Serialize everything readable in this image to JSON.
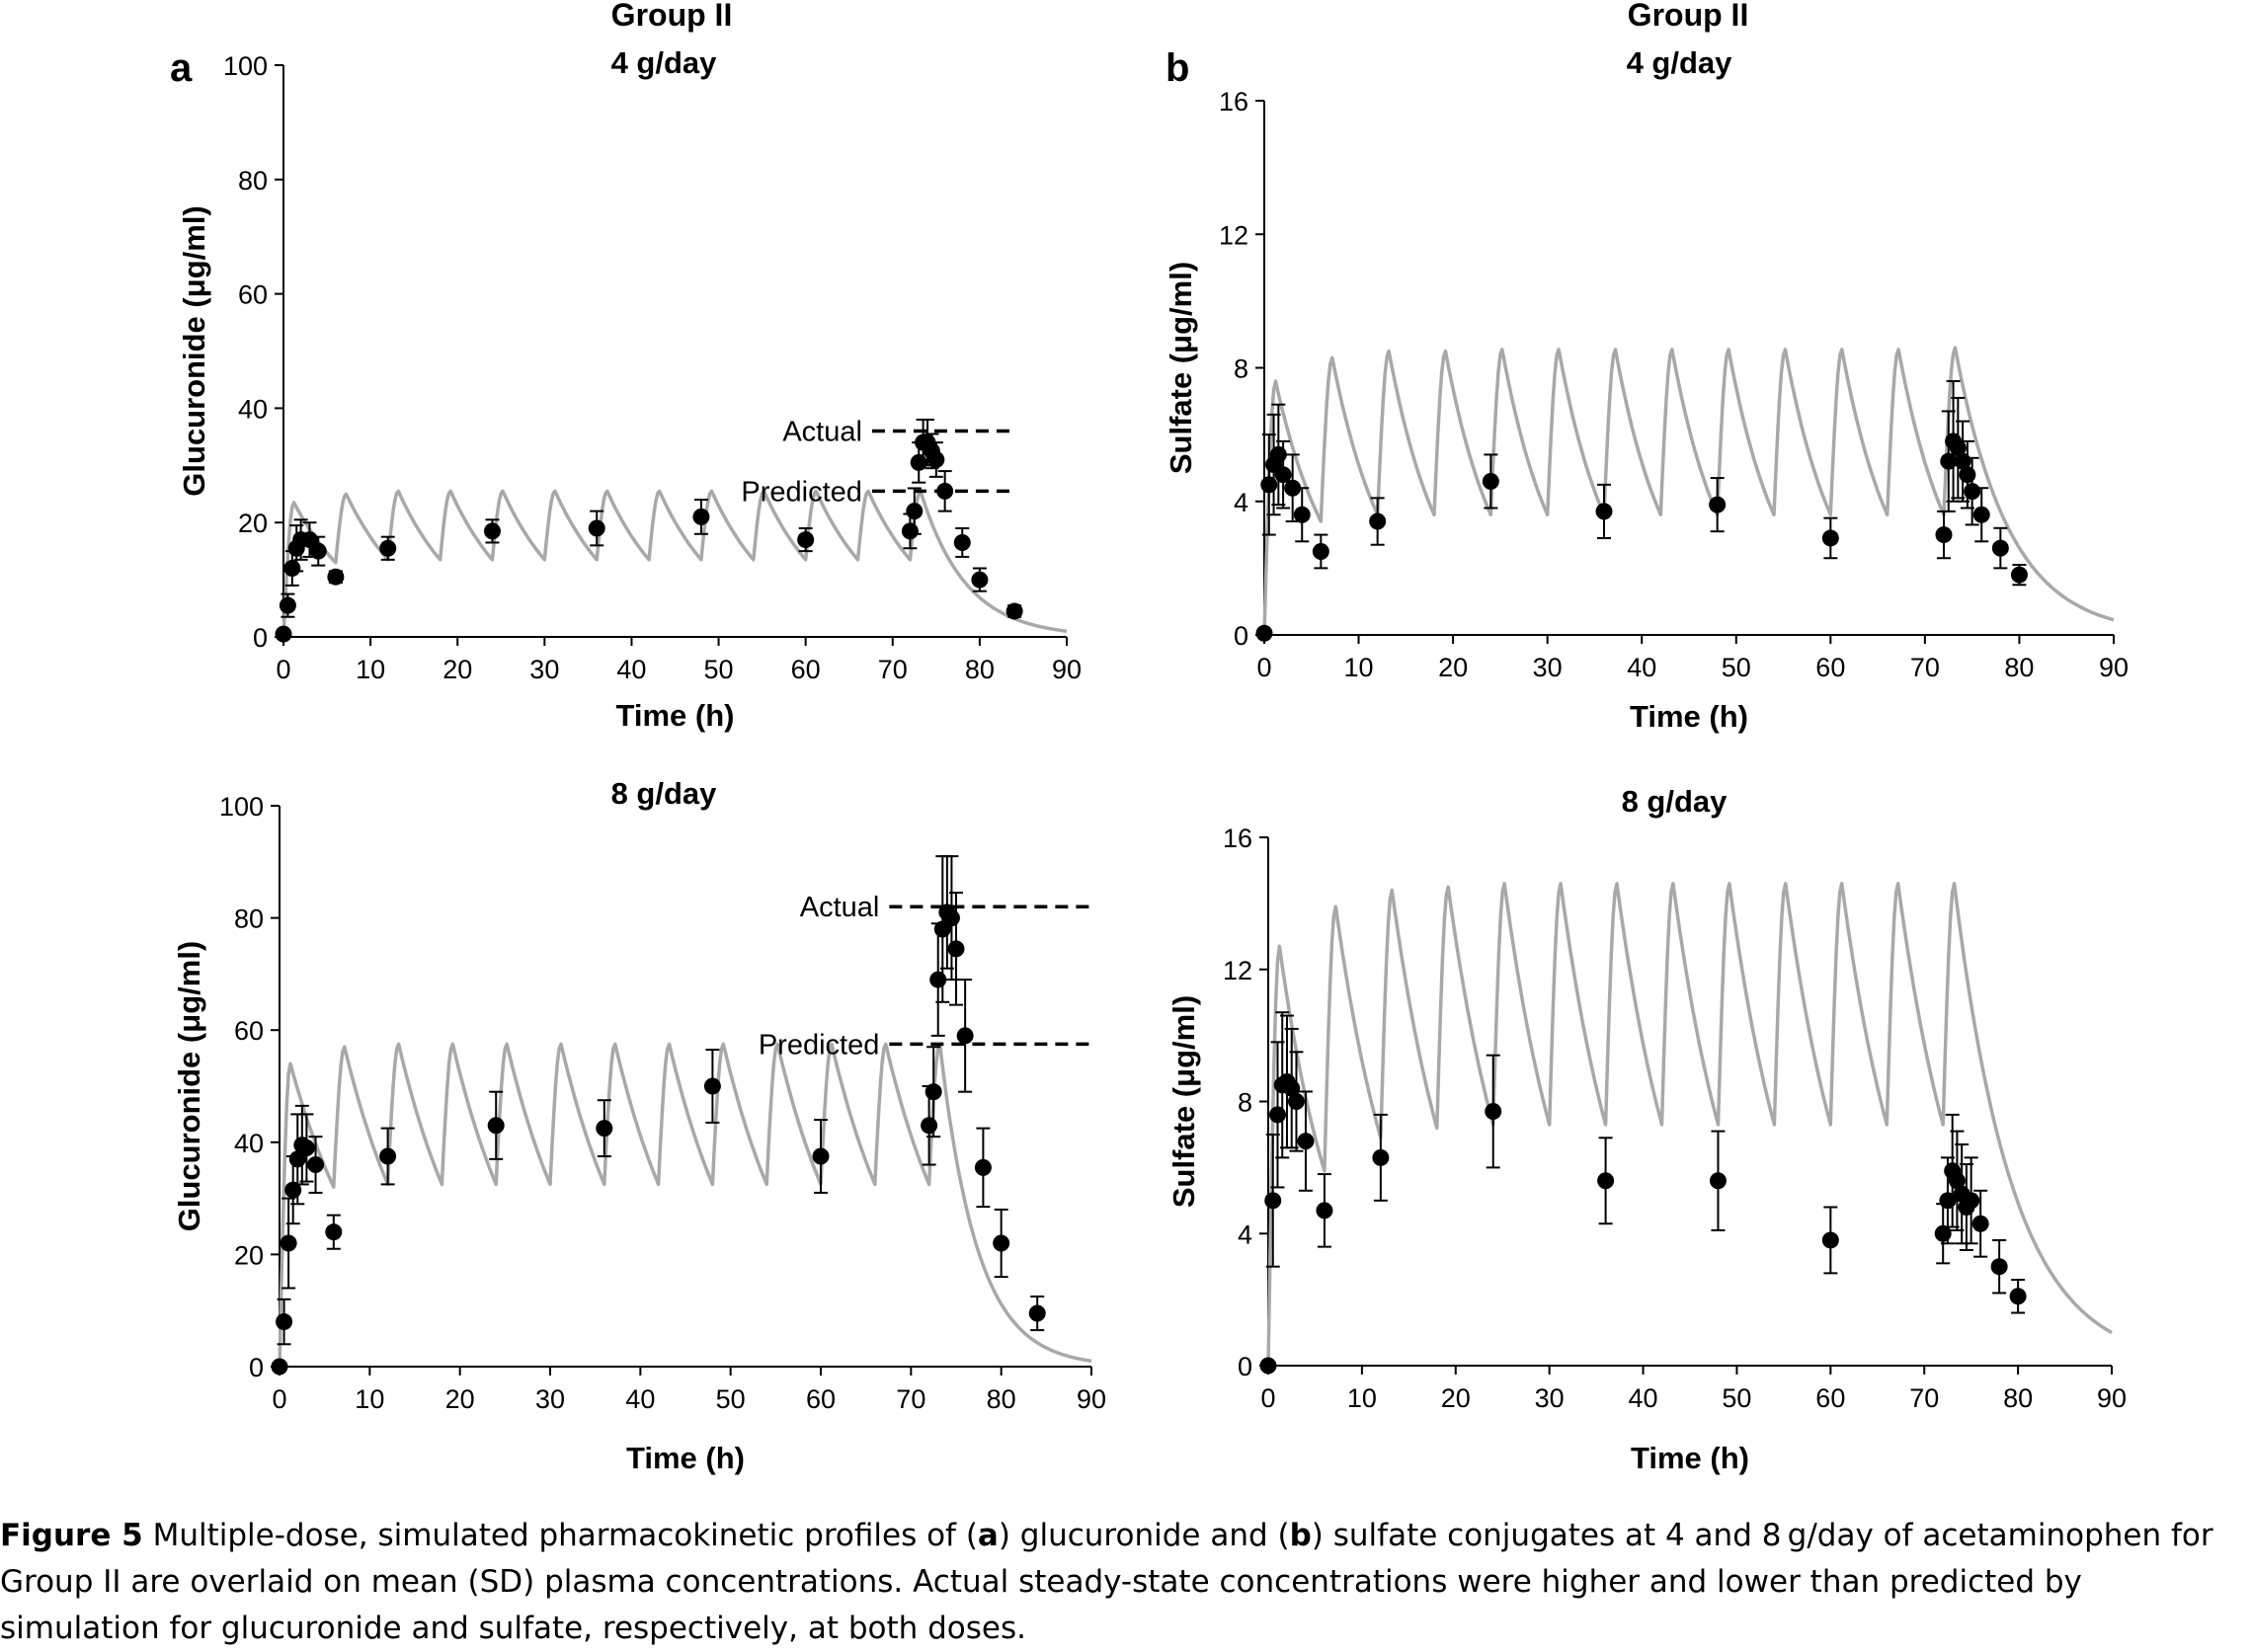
{
  "caption": {
    "label": "Figure 5",
    "text_1": "Multiple-dose, simulated pharmacokinetic profiles of (",
    "a": "a",
    "text_2": ") glucuronide and (",
    "b": "b",
    "text_3": ") sulfate conjugates at 4 and 8 g/day of acetaminophen for Group II are overlaid on mean (SD) plasma concentrations. Actual steady-state concentrations were higher and lower than predicted by simulation for glucuronide and sulfate, respectively, at both doses."
  },
  "colors": {
    "simulation": "#a8a8a8",
    "observed": "#000000",
    "axis": "#000000"
  },
  "chart_data": [
    {
      "type": "line",
      "panel": "a",
      "group_title": "Group II",
      "title": "4 g/day",
      "xlabel": "Time (h)",
      "ylabel": "Glucuronide (μg/ml)",
      "xlim": [
        0,
        90
      ],
      "ylim": [
        0,
        100
      ],
      "xticks": [
        0,
        10,
        20,
        30,
        40,
        50,
        60,
        70,
        80,
        90
      ],
      "yticks": [
        0,
        20,
        40,
        60,
        80,
        100
      ],
      "grid": false,
      "series": [
        {
          "kind": "simulated",
          "dosing_interval_h": 6,
          "doses": 13,
          "peaks": [
            23.5,
            25,
            25.5,
            25.5,
            25.5,
            25.5,
            25.5,
            25.5,
            25.5,
            25.5,
            25.5,
            25.5,
            25.5
          ],
          "troughs": [
            0,
            13,
            13.5,
            13.5,
            13.5,
            13.5,
            13.5,
            13.5,
            13.5,
            13.5,
            13.5,
            13.5,
            13.5
          ],
          "end": [
            90,
            1
          ]
        },
        {
          "kind": "observed",
          "points": [
            {
              "x": 0,
              "y": 0.5,
              "sd": 0
            },
            {
              "x": 0.5,
              "y": 5.5,
              "sd": 2
            },
            {
              "x": 1,
              "y": 12,
              "sd": 3
            },
            {
              "x": 1.5,
              "y": 15.5,
              "sd": 4
            },
            {
              "x": 2,
              "y": 17,
              "sd": 3.5
            },
            {
              "x": 3,
              "y": 17,
              "sd": 3
            },
            {
              "x": 4,
              "y": 15,
              "sd": 2.5
            },
            {
              "x": 6,
              "y": 10.5,
              "sd": 1
            },
            {
              "x": 12,
              "y": 15.5,
              "sd": 2
            },
            {
              "x": 24,
              "y": 18.5,
              "sd": 2
            },
            {
              "x": 36,
              "y": 19,
              "sd": 3
            },
            {
              "x": 48,
              "y": 21,
              "sd": 3
            },
            {
              "x": 60,
              "y": 17,
              "sd": 2
            },
            {
              "x": 72,
              "y": 18.5,
              "sd": 3
            },
            {
              "x": 72.5,
              "y": 22,
              "sd": 4
            },
            {
              "x": 73,
              "y": 30.5,
              "sd": 3.5
            },
            {
              "x": 73.5,
              "y": 34,
              "sd": 4
            },
            {
              "x": 74,
              "y": 34,
              "sd": 4
            },
            {
              "x": 74.5,
              "y": 32.5,
              "sd": 3
            },
            {
              "x": 75,
              "y": 31,
              "sd": 3
            },
            {
              "x": 76,
              "y": 25.5,
              "sd": 3.5
            },
            {
              "x": 78,
              "y": 16.5,
              "sd": 2.5
            },
            {
              "x": 80,
              "y": 10,
              "sd": 2
            },
            {
              "x": 84,
              "y": 4.5,
              "sd": 1
            }
          ]
        }
      ],
      "annotations": [
        {
          "label": "Actual",
          "y": 36,
          "x_from": 66.5,
          "x_to": 83.5
        },
        {
          "label": "Predicted",
          "y": 25.5,
          "x_from": 66.5,
          "x_to": 83.5
        }
      ]
    },
    {
      "type": "line",
      "panel": "b",
      "group_title": "Group II",
      "title": "4 g/day",
      "xlabel": "Time (h)",
      "ylabel": "Sulfate (μg/ml)",
      "xlim": [
        0,
        90
      ],
      "ylim": [
        0,
        16
      ],
      "xticks": [
        0,
        10,
        20,
        30,
        40,
        50,
        60,
        70,
        80,
        90
      ],
      "yticks": [
        0,
        4,
        8,
        12,
        16
      ],
      "grid": false,
      "series": [
        {
          "kind": "simulated",
          "dosing_interval_h": 6,
          "doses": 13,
          "peaks": [
            7.6,
            8.3,
            8.5,
            8.5,
            8.55,
            8.55,
            8.55,
            8.55,
            8.55,
            8.55,
            8.55,
            8.55,
            8.6
          ],
          "troughs": [
            0,
            3.4,
            3.6,
            3.6,
            3.6,
            3.6,
            3.6,
            3.6,
            3.6,
            3.6,
            3.6,
            3.6,
            3.6
          ],
          "end": [
            90,
            0.45
          ]
        },
        {
          "kind": "observed",
          "points": [
            {
              "x": 0,
              "y": 0.05,
              "sd": 0
            },
            {
              "x": 0.5,
              "y": 4.5,
              "sd": 1.5
            },
            {
              "x": 1,
              "y": 5.1,
              "sd": 1.5
            },
            {
              "x": 1.5,
              "y": 5.4,
              "sd": 1.5
            },
            {
              "x": 2,
              "y": 4.8,
              "sd": 1
            },
            {
              "x": 3,
              "y": 4.4,
              "sd": 1
            },
            {
              "x": 4,
              "y": 3.6,
              "sd": 0.8
            },
            {
              "x": 6,
              "y": 2.5,
              "sd": 0.5
            },
            {
              "x": 12,
              "y": 3.4,
              "sd": 0.7
            },
            {
              "x": 24,
              "y": 4.6,
              "sd": 0.8
            },
            {
              "x": 36,
              "y": 3.7,
              "sd": 0.8
            },
            {
              "x": 48,
              "y": 3.9,
              "sd": 0.8
            },
            {
              "x": 60,
              "y": 2.9,
              "sd": 0.6
            },
            {
              "x": 72,
              "y": 3,
              "sd": 0.7
            },
            {
              "x": 72.5,
              "y": 5.2,
              "sd": 1.5
            },
            {
              "x": 73,
              "y": 5.8,
              "sd": 1.8
            },
            {
              "x": 73.5,
              "y": 5.6,
              "sd": 1.5
            },
            {
              "x": 74,
              "y": 5.2,
              "sd": 1.2
            },
            {
              "x": 74.5,
              "y": 4.8,
              "sd": 1
            },
            {
              "x": 75,
              "y": 4.3,
              "sd": 1
            },
            {
              "x": 76,
              "y": 3.6,
              "sd": 0.8
            },
            {
              "x": 78,
              "y": 2.6,
              "sd": 0.6
            },
            {
              "x": 80,
              "y": 1.8,
              "sd": 0.3
            }
          ]
        }
      ],
      "annotations": []
    },
    {
      "type": "line",
      "panel": "a",
      "title": "8 g/day",
      "xlabel": "Time (h)",
      "ylabel": "Glucuronide (μg/ml)",
      "xlim": [
        0,
        90
      ],
      "ylim": [
        0,
        100
      ],
      "xticks": [
        0,
        10,
        20,
        30,
        40,
        50,
        60,
        70,
        80,
        90
      ],
      "yticks": [
        0,
        20,
        40,
        60,
        80,
        100
      ],
      "grid": false,
      "series": [
        {
          "kind": "simulated",
          "dosing_interval_h": 6,
          "doses": 13,
          "peaks": [
            54,
            57,
            57.5,
            57.5,
            57.5,
            57.5,
            57.5,
            57.5,
            57.5,
            57.5,
            57.5,
            57.5,
            57.5
          ],
          "troughs": [
            0,
            32,
            32.5,
            32.5,
            32.5,
            32.5,
            32.5,
            32.5,
            32.5,
            32.5,
            32.5,
            32.5,
            32.5
          ],
          "end": [
            90,
            1
          ]
        },
        {
          "kind": "observed",
          "points": [
            {
              "x": 0,
              "y": 0,
              "sd": 0
            },
            {
              "x": 0.5,
              "y": 8,
              "sd": 4
            },
            {
              "x": 1,
              "y": 22,
              "sd": 8
            },
            {
              "x": 1.5,
              "y": 31.5,
              "sd": 6
            },
            {
              "x": 2,
              "y": 37,
              "sd": 8
            },
            {
              "x": 2.5,
              "y": 39.5,
              "sd": 7
            },
            {
              "x": 3,
              "y": 39,
              "sd": 6
            },
            {
              "x": 4,
              "y": 36,
              "sd": 5
            },
            {
              "x": 6,
              "y": 24,
              "sd": 3
            },
            {
              "x": 12,
              "y": 37.5,
              "sd": 5
            },
            {
              "x": 24,
              "y": 43,
              "sd": 6
            },
            {
              "x": 36,
              "y": 42.5,
              "sd": 5
            },
            {
              "x": 48,
              "y": 50,
              "sd": 6.5
            },
            {
              "x": 60,
              "y": 37.5,
              "sd": 6.5
            },
            {
              "x": 72,
              "y": 43,
              "sd": 7
            },
            {
              "x": 72.5,
              "y": 49,
              "sd": 8
            },
            {
              "x": 73,
              "y": 69,
              "sd": 10
            },
            {
              "x": 73.5,
              "y": 78,
              "sd": 13
            },
            {
              "x": 74,
              "y": 81,
              "sd": 10
            },
            {
              "x": 74.5,
              "y": 80,
              "sd": 11
            },
            {
              "x": 75,
              "y": 74.5,
              "sd": 10
            },
            {
              "x": 76,
              "y": 59,
              "sd": 10
            },
            {
              "x": 78,
              "y": 35.5,
              "sd": 7
            },
            {
              "x": 80,
              "y": 22,
              "sd": 6
            },
            {
              "x": 84,
              "y": 9.5,
              "sd": 3
            }
          ]
        }
      ],
      "annotations": [
        {
          "label": "Actual",
          "y": 82,
          "x_from": 66.5,
          "x_to": 90
        },
        {
          "label": "Predicted",
          "y": 57.5,
          "x_from": 66.5,
          "x_to": 90
        }
      ]
    },
    {
      "type": "line",
      "panel": "b",
      "title": "8 g/day",
      "xlabel": "Time (h)",
      "ylabel": "Sulfate (μg/ml)",
      "xlim": [
        0,
        90
      ],
      "ylim": [
        0,
        16
      ],
      "xticks": [
        0,
        10,
        20,
        30,
        40,
        50,
        60,
        70,
        80,
        90
      ],
      "yticks": [
        0,
        4,
        8,
        12,
        16
      ],
      "grid": false,
      "series": [
        {
          "kind": "simulated",
          "dosing_interval_h": 6,
          "doses": 13,
          "peaks": [
            12.7,
            13.9,
            14.4,
            14.5,
            14.6,
            14.6,
            14.6,
            14.6,
            14.6,
            14.6,
            14.6,
            14.6,
            14.6
          ],
          "troughs": [
            0,
            5.9,
            6.9,
            7.2,
            7.3,
            7.3,
            7.3,
            7.3,
            7.3,
            7.3,
            7.3,
            7.3,
            7.3
          ],
          "end": [
            90,
            1
          ]
        },
        {
          "kind": "observed",
          "points": [
            {
              "x": 0,
              "y": 0,
              "sd": 0
            },
            {
              "x": 0.5,
              "y": 5,
              "sd": 2
            },
            {
              "x": 1,
              "y": 7.6,
              "sd": 2.2
            },
            {
              "x": 1.5,
              "y": 8.5,
              "sd": 2.2
            },
            {
              "x": 2,
              "y": 8.6,
              "sd": 2
            },
            {
              "x": 2.5,
              "y": 8.4,
              "sd": 1.8
            },
            {
              "x": 3,
              "y": 8,
              "sd": 1.5
            },
            {
              "x": 4,
              "y": 6.8,
              "sd": 1.5
            },
            {
              "x": 6,
              "y": 4.7,
              "sd": 1.1
            },
            {
              "x": 12,
              "y": 6.3,
              "sd": 1.3
            },
            {
              "x": 24,
              "y": 7.7,
              "sd": 1.7
            },
            {
              "x": 36,
              "y": 5.6,
              "sd": 1.3
            },
            {
              "x": 48,
              "y": 5.6,
              "sd": 1.5
            },
            {
              "x": 60,
              "y": 3.8,
              "sd": 1
            },
            {
              "x": 72,
              "y": 4,
              "sd": 0.9
            },
            {
              "x": 72.5,
              "y": 5,
              "sd": 1.3
            },
            {
              "x": 73,
              "y": 5.9,
              "sd": 1.7
            },
            {
              "x": 73.5,
              "y": 5.6,
              "sd": 1.5
            },
            {
              "x": 74,
              "y": 5.2,
              "sd": 1.5
            },
            {
              "x": 74.5,
              "y": 4.8,
              "sd": 1.3
            },
            {
              "x": 75,
              "y": 5,
              "sd": 1.3
            },
            {
              "x": 76,
              "y": 4.3,
              "sd": 1
            },
            {
              "x": 78,
              "y": 3,
              "sd": 0.8
            },
            {
              "x": 80,
              "y": 2.1,
              "sd": 0.5
            }
          ]
        }
      ],
      "annotations": []
    }
  ]
}
